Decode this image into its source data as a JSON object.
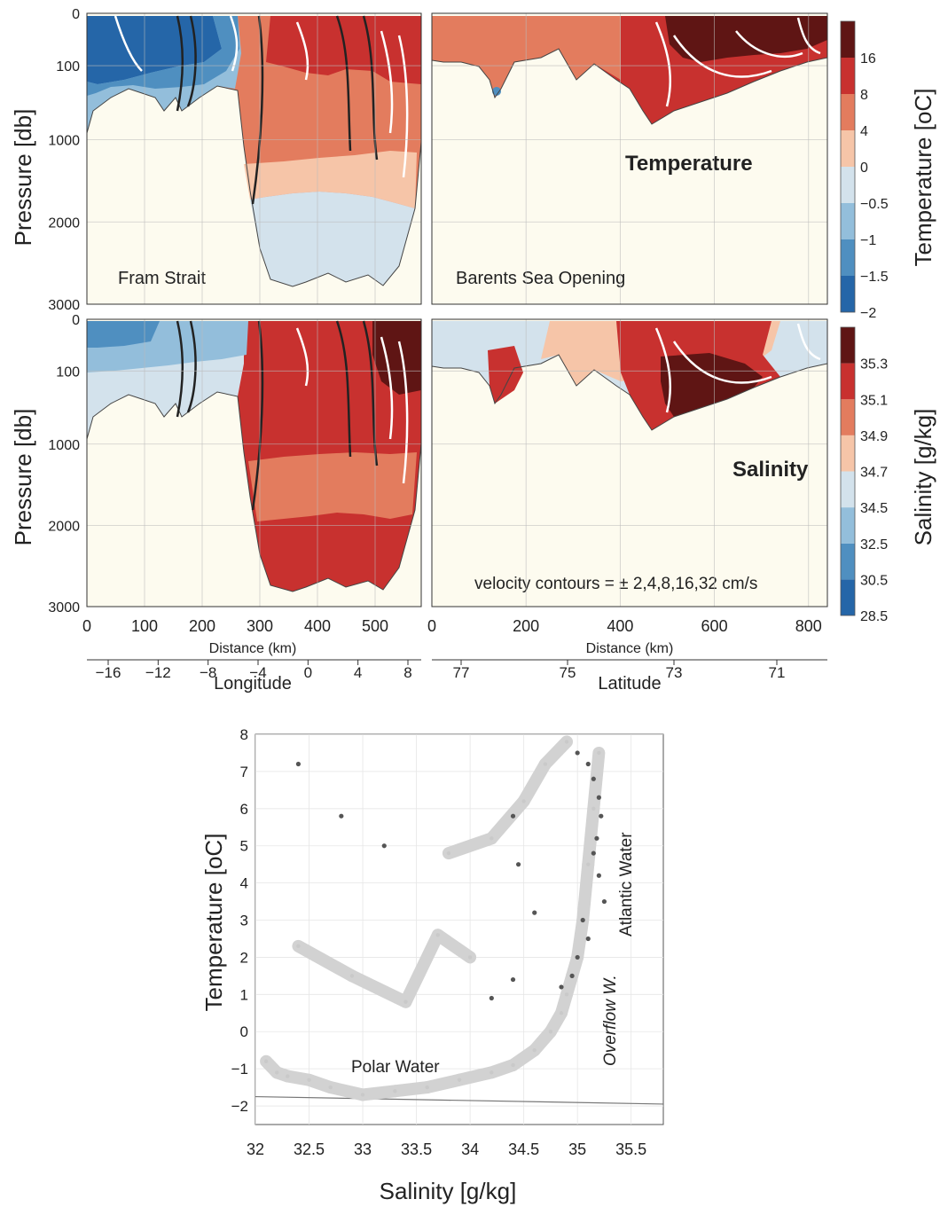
{
  "sections": {
    "top_xlabel_left": "Distance (km)",
    "top_xlabel_right": "Distance (km)",
    "longitude_label": "Longitude",
    "latitude_label": "Latitude",
    "pressure_label": "Pressure  [db]",
    "temp_cbar_label": "Temperature [oC]",
    "sal_cbar_label": "Salinity [g/kg]",
    "panel_fram": "Fram Strait",
    "panel_bso": "Barents Sea Opening",
    "panel_temperature": "Temperature",
    "panel_salinity": "Salinity",
    "velocity_note": "velocity contours = ± 2,4,8,16,32 cm/s"
  },
  "chart_data": [
    {
      "type": "heatmap",
      "panel": "Temperature section, Fram Strait",
      "x": [
        0,
        100,
        200,
        300,
        400,
        500
      ],
      "xlim": [
        0,
        580
      ],
      "xlabel": "Distance (km)",
      "secondary_x": {
        "label": "Longitude",
        "ticks": [
          -16,
          -12,
          -8,
          -4,
          0,
          4,
          8
        ]
      },
      "ylabel": "Pressure  [db]",
      "yticks": [
        0,
        100,
        1000,
        2000,
        3000
      ],
      "colorbar": {
        "label": "Temperature [oC]",
        "levels": [
          -2,
          -1.5,
          -1,
          -0.5,
          0,
          4,
          8,
          16
        ],
        "colors": [
          "#2566a8",
          "#4f8fc0",
          "#93bedb",
          "#d3e2ec",
          "#f6c5a8",
          "#e37c5e",
          "#c8312f",
          "#5f1514"
        ]
      },
      "annotation": "Fram Strait"
    },
    {
      "type": "heatmap",
      "panel": "Temperature section, Barents Sea Opening",
      "x": [
        0,
        200,
        400,
        600,
        800
      ],
      "xlim": [
        0,
        840
      ],
      "xlabel": "Distance (km)",
      "secondary_x": {
        "label": "Latitude",
        "ticks": [
          77,
          75,
          73,
          71
        ]
      },
      "annotation": "Temperature",
      "annotation2": "Barents Sea Opening"
    },
    {
      "type": "heatmap",
      "panel": "Salinity section, Fram Strait",
      "x": [
        0,
        100,
        200,
        300,
        400,
        500
      ],
      "xlim": [
        0,
        580
      ],
      "ylabel": "Pressure  [db]",
      "yticks": [
        0,
        100,
        1000,
        2000,
        3000
      ],
      "colorbar": {
        "label": "Salinity [g/kg]",
        "levels": [
          28.5,
          30.5,
          32.5,
          34.5,
          34.7,
          34.9,
          35.1,
          35.3
        ],
        "colors": [
          "#2566a8",
          "#4f8fc0",
          "#93bedb",
          "#d3e2ec",
          "#f6c5a8",
          "#e37c5e",
          "#c8312f",
          "#5f1514"
        ]
      }
    },
    {
      "type": "heatmap",
      "panel": "Salinity section, Barents Sea Opening",
      "x": [
        0,
        200,
        400,
        600,
        800
      ],
      "xlim": [
        0,
        840
      ],
      "annotation": "Salinity",
      "note": "velocity contours = ± 2,4,8,16,32 cm/s"
    },
    {
      "type": "scatter",
      "panel": "T-S diagram",
      "xlabel": "Salinity [g/kg]",
      "ylabel": "Temperature [oC]",
      "xlim": [
        32,
        35.8
      ],
      "ylim": [
        -2.5,
        8
      ],
      "xticks": [
        32,
        32.5,
        33,
        33.5,
        34,
        34.5,
        35,
        35.5
      ],
      "yticks": [
        -2,
        -1,
        0,
        1,
        2,
        3,
        4,
        5,
        6,
        7,
        8
      ],
      "density_contours": [
        25,
        25.5,
        26,
        26.5,
        27,
        27.5,
        28,
        28.5
      ],
      "annotations": [
        "Polar Water",
        "Atlantic Water",
        "Overflow W."
      ],
      "series": [
        {
          "name": "light",
          "color": "#c9c9c9",
          "points": [
            [
              32.1,
              -0.8
            ],
            [
              32.2,
              -1.1
            ],
            [
              32.3,
              -1.2
            ],
            [
              32.5,
              -1.3
            ],
            [
              32.7,
              -1.5
            ],
            [
              33.0,
              -1.7
            ],
            [
              33.3,
              -1.6
            ],
            [
              33.6,
              -1.5
            ],
            [
              33.9,
              -1.3
            ],
            [
              34.2,
              -1.1
            ],
            [
              34.4,
              -0.9
            ],
            [
              34.6,
              -0.5
            ],
            [
              34.75,
              0.0
            ],
            [
              34.85,
              0.5
            ],
            [
              34.9,
              1.0
            ],
            [
              34.95,
              1.5
            ],
            [
              35.0,
              2.0
            ],
            [
              35.05,
              3.0
            ],
            [
              35.1,
              4.5
            ],
            [
              35.15,
              6.0
            ],
            [
              35.2,
              7.5
            ],
            [
              32.4,
              2.3
            ],
            [
              32.9,
              1.5
            ],
            [
              33.4,
              0.8
            ],
            [
              33.7,
              2.6
            ],
            [
              34.0,
              2.0
            ],
            [
              33.8,
              4.8
            ],
            [
              34.2,
              5.2
            ],
            [
              34.5,
              6.2
            ],
            [
              34.7,
              7.2
            ],
            [
              34.9,
              7.8
            ]
          ]
        },
        {
          "name": "dark",
          "color": "#555555",
          "points": [
            [
              35.0,
              7.5
            ],
            [
              35.1,
              7.2
            ],
            [
              35.15,
              6.8
            ],
            [
              35.2,
              6.3
            ],
            [
              35.22,
              5.8
            ],
            [
              35.18,
              5.2
            ],
            [
              35.15,
              4.8
            ],
            [
              35.2,
              4.2
            ],
            [
              35.25,
              3.5
            ],
            [
              35.05,
              3.0
            ],
            [
              35.1,
              2.5
            ],
            [
              35.0,
              2.0
            ],
            [
              34.95,
              1.5
            ],
            [
              34.85,
              1.2
            ],
            [
              34.6,
              3.2
            ],
            [
              34.45,
              4.5
            ],
            [
              34.4,
              5.8
            ],
            [
              32.8,
              5.8
            ],
            [
              33.2,
              5.0
            ],
            [
              32.4,
              7.2
            ],
            [
              34.2,
              0.9
            ],
            [
              34.4,
              1.4
            ]
          ]
        }
      ]
    }
  ]
}
